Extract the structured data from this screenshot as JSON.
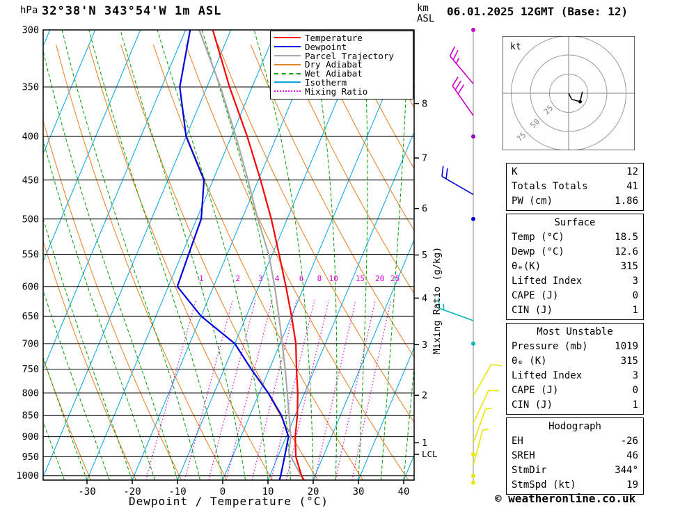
{
  "header": {
    "station_title": "32°38'N 343°54'W 1m ASL",
    "datetime_title": "06.01.2025 12GMT (Base: 12)",
    "pressure_unit": "hPa",
    "altitude_unit_line1": "km",
    "altitude_unit_line2": "ASL"
  },
  "axes": {
    "xlabel": "Dewpoint / Temperature (°C)",
    "mixing_ratio_label": "Mixing Ratio (g/kg)"
  },
  "legend": {
    "items": [
      {
        "label": "Temperature",
        "color": "#ff0000",
        "style": "solid"
      },
      {
        "label": "Dewpoint",
        "color": "#0000e0",
        "style": "solid"
      },
      {
        "label": "Parcel Trajectory",
        "color": "#a8a8a8",
        "style": "solid"
      },
      {
        "label": "Dry Adiabat",
        "color": "#e87d1e",
        "style": "solid"
      },
      {
        "label": "Wet Adiabat",
        "color": "#00a000",
        "style": "dashed"
      },
      {
        "label": "Isotherm",
        "color": "#00a2e8",
        "style": "solid"
      },
      {
        "label": "Mixing Ratio",
        "color": "#dd00dd",
        "style": "dotted"
      }
    ]
  },
  "chart_data": {
    "type": "line",
    "title": "Skew-T log-P sounding",
    "pressure_range_hPa": [
      300,
      1012
    ],
    "pressure_ticks_hPa": [
      300,
      350,
      400,
      450,
      500,
      550,
      600,
      650,
      700,
      750,
      800,
      850,
      900,
      950,
      1000
    ],
    "temp_axis_ticks_C": [
      -30,
      -20,
      -10,
      0,
      10,
      20,
      30,
      40
    ],
    "isotherms_C": {
      "min": -90,
      "max": 40,
      "step": 10
    },
    "dry_adiabats_C": {
      "min": -30,
      "max": 150,
      "step": 10
    },
    "wet_adiabats_C": {
      "min": -60,
      "max": 40,
      "step": 5
    },
    "mixing_ratio_g_kg": [
      1,
      2,
      3,
      4,
      6,
      8,
      10,
      15,
      20,
      25
    ],
    "sounding": {
      "pressure_hPa": [
        1019,
        1000,
        950,
        900,
        850,
        800,
        750,
        700,
        650,
        600,
        550,
        500,
        450,
        400,
        350,
        300
      ],
      "temperature_C": [
        18.5,
        17,
        14,
        12,
        10.5,
        8.5,
        6,
        3.5,
        0,
        -4,
        -8.5,
        -13.5,
        -19.5,
        -26.5,
        -35,
        -44
      ],
      "dewpoint_C": [
        12.6,
        12.4,
        11.5,
        10.5,
        7,
        2,
        -4,
        -10,
        -20,
        -28,
        -28.5,
        -29,
        -32,
        -40,
        -46,
        -49
      ]
    },
    "parcel": {
      "pressure_hPa": [
        1019,
        1000,
        950,
        940,
        900,
        850,
        800,
        750,
        700,
        650,
        600,
        550,
        500,
        450,
        400,
        350,
        300
      ],
      "temperature_C": [
        18.5,
        16.9,
        12.9,
        12.1,
        11.0,
        8.7,
        6.2,
        3.5,
        0.5,
        -2.8,
        -6.5,
        -10.8,
        -16.5,
        -22.3,
        -29,
        -37,
        -47
      ]
    },
    "km_ticks": [
      {
        "km": 8,
        "p": 366
      },
      {
        "km": 7,
        "p": 424
      },
      {
        "km": 6,
        "p": 486
      },
      {
        "km": 5,
        "p": 551
      },
      {
        "km": 4,
        "p": 619
      },
      {
        "km": 3,
        "p": 702
      },
      {
        "km": 2,
        "p": 805
      },
      {
        "km": 1,
        "p": 915
      }
    ],
    "lcl": {
      "label": "LCL",
      "p": 944
    },
    "winds": [
      {
        "p": 300,
        "dot": true,
        "color": "#cc00cc"
      },
      {
        "p": 347,
        "dir": 320,
        "spd": 25,
        "color": "#cc00cc"
      },
      {
        "p": 378,
        "dir": 325,
        "spd": 30,
        "color": "#cc00cc"
      },
      {
        "p": 400,
        "dot": true,
        "color": "#9900cc"
      },
      {
        "p": 468,
        "dir": 300,
        "spd": 20,
        "color": "#0000e6"
      },
      {
        "p": 500,
        "dot": true,
        "color": "#0000cc"
      },
      {
        "p": 658,
        "dir": 290,
        "spd": 15,
        "color": "#00b8b8"
      },
      {
        "p": 700,
        "dot": true,
        "color": "#00b8b8"
      },
      {
        "p": 806,
        "dir": 30,
        "spd": 10,
        "color": "#e8e800"
      },
      {
        "p": 868,
        "dir": 25,
        "spd": 10,
        "color": "#e8e800"
      },
      {
        "p": 915,
        "dir": 20,
        "spd": 7,
        "color": "#e8e800"
      },
      {
        "p": 944,
        "dot": true,
        "color": "#e8e800"
      },
      {
        "p": 972,
        "dir": 15,
        "spd": 5,
        "color": "#e8e800"
      },
      {
        "p": 1000,
        "dot": true,
        "color": "#e8e800"
      },
      {
        "p": 1019,
        "dot": true,
        "color": "#e8e800"
      }
    ]
  },
  "hodograph": {
    "unit": "kt",
    "rings_kt": [
      25,
      50,
      75
    ],
    "trace_kt": [
      [
        0,
        0
      ],
      [
        4,
        -8
      ],
      [
        15,
        -11
      ],
      [
        18,
        2
      ]
    ],
    "marker_kt": [
      15,
      -11
    ]
  },
  "tables": [
    {
      "title": null,
      "rows": [
        [
          "K",
          "12"
        ],
        [
          "Totals Totals",
          "41"
        ],
        [
          "PW (cm)",
          "1.86"
        ]
      ]
    },
    {
      "title": "Surface",
      "rows": [
        [
          "Temp (°C)",
          "18.5"
        ],
        [
          "Dewp (°C)",
          "12.6"
        ],
        [
          "θₑ(K)",
          "315"
        ],
        [
          "Lifted Index",
          "3"
        ],
        [
          "CAPE (J)",
          "0"
        ],
        [
          "CIN (J)",
          "1"
        ]
      ]
    },
    {
      "title": "Most Unstable",
      "rows": [
        [
          "Pressure (mb)",
          "1019"
        ],
        [
          "θₑ (K)",
          "315"
        ],
        [
          "Lifted Index",
          "3"
        ],
        [
          "CAPE (J)",
          "0"
        ],
        [
          "CIN (J)",
          "1"
        ]
      ]
    },
    {
      "title": "Hodograph",
      "rows": [
        [
          "EH",
          "-26"
        ],
        [
          "SREH",
          "46"
        ],
        [
          "StmDir",
          "344°"
        ],
        [
          "StmSpd (kt)",
          "19"
        ]
      ]
    }
  ],
  "footer": {
    "copyright": "© weatheronline.co.uk"
  },
  "colors": {
    "temperature": "#ff0000",
    "dewpoint": "#0000e0",
    "parcel": "#a8a8a8",
    "dry_adiabat": "#e87d1e",
    "wet_adiabat": "#00a000",
    "isotherm": "#00a2e8",
    "mixing_ratio": "#dd00dd",
    "grid": "#000000",
    "wind_staff": "#b0b0b0"
  }
}
